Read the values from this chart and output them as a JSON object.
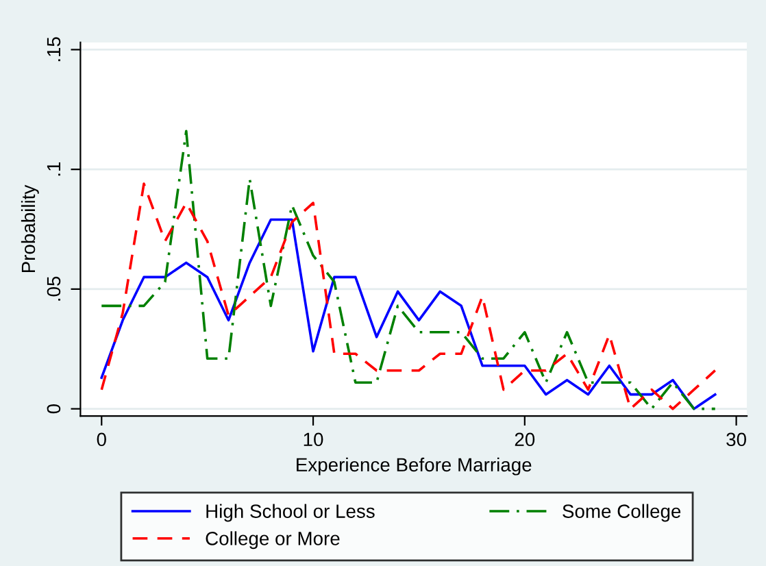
{
  "chart_data": {
    "type": "line",
    "xlabel": "Experience Before Marriage",
    "ylabel": "Probability",
    "x": [
      0,
      1,
      2,
      3,
      4,
      5,
      6,
      7,
      8,
      9,
      10,
      11,
      12,
      13,
      14,
      15,
      16,
      17,
      18,
      19,
      20,
      21,
      22,
      23,
      24,
      25,
      26,
      27,
      28,
      29
    ],
    "series": [
      {
        "name": "High School or Less",
        "color": "#0000ff",
        "line_style": "solid",
        "values": [
          0.013,
          0.037,
          0.055,
          0.055,
          0.061,
          0.055,
          0.037,
          0.061,
          0.079,
          0.079,
          0.024,
          0.055,
          0.055,
          0.03,
          0.049,
          0.037,
          0.049,
          0.043,
          0.018,
          0.018,
          0.018,
          0.006,
          0.012,
          0.006,
          0.018,
          0.006,
          0.006,
          0.012,
          0,
          0.006
        ]
      },
      {
        "name": "Some College",
        "color": "#008000",
        "line_style": "dashdot",
        "values": [
          0.043,
          0.043,
          0.043,
          0.053,
          0.116,
          0.021,
          0.021,
          0.096,
          0.043,
          0.085,
          0.064,
          0.053,
          0.011,
          0.011,
          0.043,
          0.032,
          0.032,
          0.032,
          0.021,
          0.021,
          0.032,
          0.011,
          0.032,
          0.011,
          0.011,
          0.011,
          0,
          0.011,
          0,
          0
        ]
      },
      {
        "name": "College or More",
        "color": "#ff0000",
        "line_style": "dashed",
        "values": [
          0.008,
          0.04,
          0.094,
          0.07,
          0.086,
          0.07,
          0.039,
          0.047,
          0.055,
          0.078,
          0.086,
          0.023,
          0.023,
          0.016,
          0.016,
          0.016,
          0.023,
          0.023,
          0.047,
          0.008,
          0.016,
          0.016,
          0.023,
          0.008,
          0.031,
          0,
          0.008,
          0,
          0.008,
          0.016
        ]
      }
    ],
    "xlim": [
      -1,
      30.5
    ],
    "xticks": [
      0,
      10,
      20,
      30
    ],
    "ylim": [
      -0.003,
      0.153
    ],
    "yticks": [
      {
        "value": 0,
        "label": "0"
      },
      {
        "value": 0.05,
        "label": ".05"
      },
      {
        "value": 0.1,
        "label": ".1"
      },
      {
        "value": 0.15,
        "label": ".15"
      }
    ],
    "grid": "y",
    "legend": "bottom"
  }
}
